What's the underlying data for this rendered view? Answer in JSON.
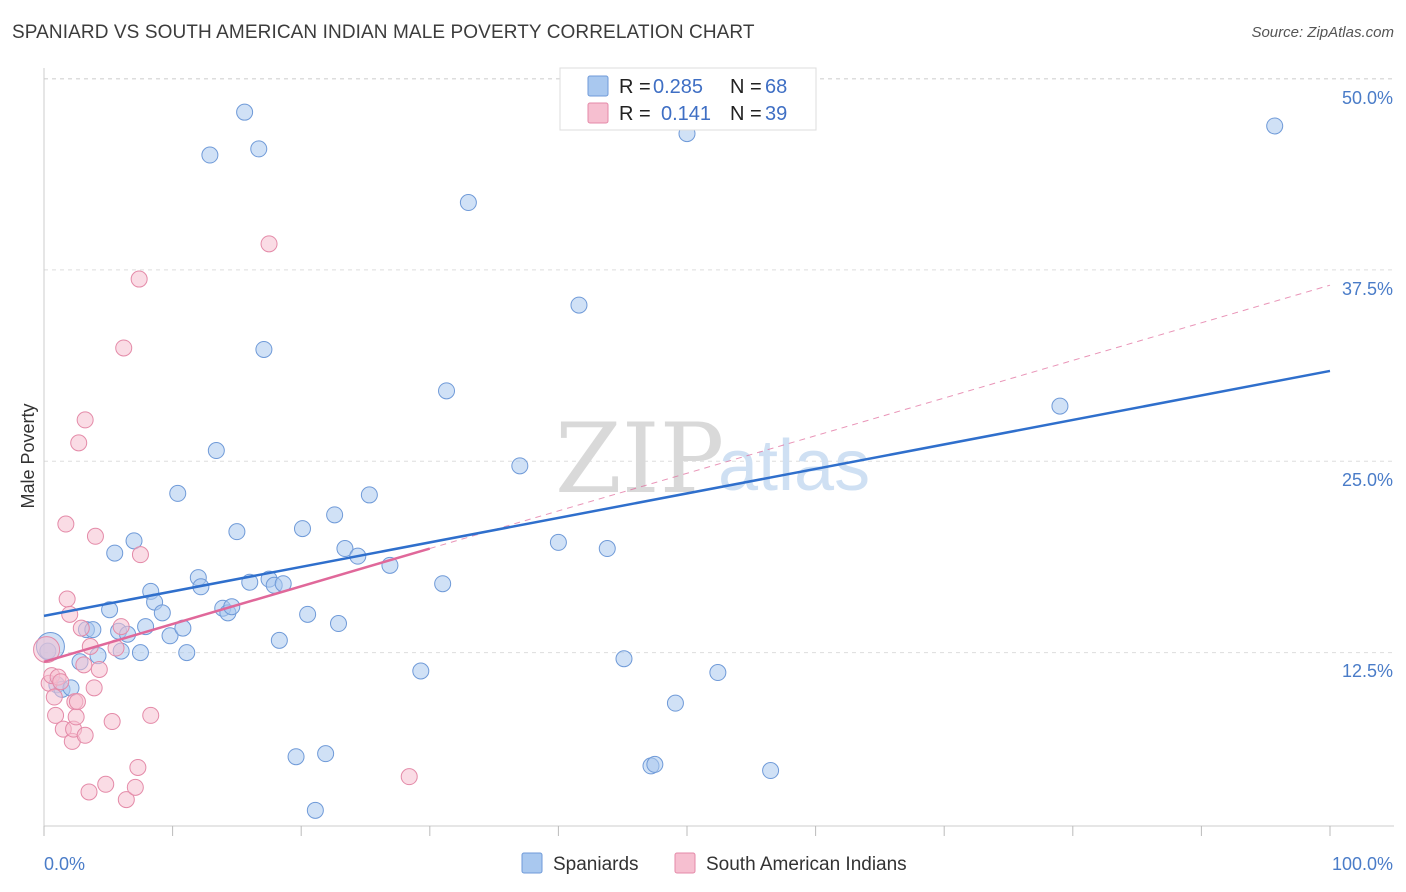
{
  "title": "SPANIARD VS SOUTH AMERICAN INDIAN MALE POVERTY CORRELATION CHART",
  "source": "Source: ZipAtlas.com",
  "watermark": {
    "zip": "ZIP",
    "atlas": "atlas"
  },
  "colors": {
    "blue_fill": "#a9c8ef",
    "blue_stroke": "#6f9ad8",
    "blue_line": "#2f6fcc",
    "pink_fill": "#f6bfd0",
    "pink_stroke": "#e48aa8",
    "pink_line": "#e0689a",
    "tick_text": "#4a7cc8",
    "grid": "#dddddd"
  },
  "legend": {
    "items": [
      {
        "r_label": "R =",
        "r_value": "0.285",
        "n_label": "N =",
        "n_value": "68"
      },
      {
        "r_label": "R =",
        "r_value": "0.141",
        "n_label": "N =",
        "n_value": "39"
      }
    ]
  },
  "bottom_legend": [
    "Spaniards",
    "South American Indians"
  ],
  "chart_data": {
    "type": "scatter",
    "title": "SPANIARD VS SOUTH AMERICAN INDIAN MALE POVERTY CORRELATION CHART",
    "xlabel": "",
    "ylabel": "Male Poverty",
    "xlim": [
      0,
      100
    ],
    "ylim": [
      0,
      53
    ],
    "x_tick_labels": [
      "0.0%",
      "100.0%"
    ],
    "y_ticks": [
      12.5,
      25.0,
      37.5,
      50.0
    ],
    "y_tick_labels": [
      "12.5%",
      "25.0%",
      "37.5%",
      "50.0%"
    ],
    "grid": true,
    "series": [
      {
        "name": "Spaniards",
        "color": "#a9c8ef",
        "points": [
          [
            0.3,
            12.6
          ],
          [
            1.0,
            10.4
          ],
          [
            1.4,
            10.1
          ],
          [
            2.1,
            10.2
          ],
          [
            2.8,
            11.9
          ],
          [
            3.3,
            14.0
          ],
          [
            3.8,
            14.0
          ],
          [
            4.2,
            12.3
          ],
          [
            5.1,
            15.3
          ],
          [
            5.8,
            13.9
          ],
          [
            5.5,
            19.0
          ],
          [
            6.0,
            12.6
          ],
          [
            6.5,
            13.7
          ],
          [
            7.0,
            19.8
          ],
          [
            7.5,
            12.5
          ],
          [
            7.9,
            14.2
          ],
          [
            8.3,
            16.5
          ],
          [
            8.6,
            15.8
          ],
          [
            9.2,
            15.1
          ],
          [
            9.8,
            13.6
          ],
          [
            10.4,
            22.9
          ],
          [
            10.8,
            14.1
          ],
          [
            11.1,
            12.5
          ],
          [
            12.0,
            17.4
          ],
          [
            12.2,
            16.8
          ],
          [
            12.9,
            45.0
          ],
          [
            13.4,
            25.7
          ],
          [
            13.9,
            15.4
          ],
          [
            14.3,
            15.1
          ],
          [
            14.6,
            15.5
          ],
          [
            15.0,
            20.4
          ],
          [
            15.6,
            47.8
          ],
          [
            16.0,
            17.1
          ],
          [
            16.7,
            45.4
          ],
          [
            17.1,
            32.3
          ],
          [
            17.5,
            17.3
          ],
          [
            17.9,
            16.9
          ],
          [
            18.6,
            17.0
          ],
          [
            18.3,
            13.3
          ],
          [
            19.6,
            5.7
          ],
          [
            20.1,
            20.6
          ],
          [
            20.5,
            15.0
          ],
          [
            21.1,
            2.2
          ],
          [
            21.9,
            5.9
          ],
          [
            22.6,
            21.5
          ],
          [
            22.9,
            14.4
          ],
          [
            23.4,
            19.3
          ],
          [
            24.4,
            18.8
          ],
          [
            25.3,
            22.8
          ],
          [
            26.9,
            18.2
          ],
          [
            29.3,
            11.3
          ],
          [
            31.0,
            17.0
          ],
          [
            31.3,
            29.6
          ],
          [
            33.0,
            41.9
          ],
          [
            37.0,
            24.7
          ],
          [
            40.0,
            19.7
          ],
          [
            41.6,
            35.2
          ],
          [
            43.8,
            19.3
          ],
          [
            45.1,
            12.1
          ],
          [
            47.2,
            5.1
          ],
          [
            47.5,
            5.2
          ],
          [
            49.1,
            9.2
          ],
          [
            50.0,
            46.4
          ],
          [
            52.4,
            11.2
          ],
          [
            56.5,
            4.8
          ],
          [
            79.0,
            28.6
          ],
          [
            95.7,
            46.9
          ],
          [
            0.5,
            12.9
          ]
        ],
        "trendline": [
          [
            0,
            14.9
          ],
          [
            100,
            30.9
          ]
        ]
      },
      {
        "name": "South American Indians",
        "color": "#f6bfd0",
        "points": [
          [
            0.2,
            12.7
          ],
          [
            0.4,
            10.5
          ],
          [
            0.6,
            11.0
          ],
          [
            0.8,
            9.6
          ],
          [
            0.9,
            8.4
          ],
          [
            1.1,
            10.9
          ],
          [
            1.3,
            10.6
          ],
          [
            1.5,
            7.5
          ],
          [
            1.7,
            20.9
          ],
          [
            1.8,
            16.0
          ],
          [
            2.0,
            15.0
          ],
          [
            2.2,
            6.7
          ],
          [
            2.3,
            7.5
          ],
          [
            2.4,
            9.3
          ],
          [
            2.5,
            8.3
          ],
          [
            2.6,
            9.3
          ],
          [
            2.7,
            26.2
          ],
          [
            2.9,
            14.1
          ],
          [
            3.1,
            11.7
          ],
          [
            3.2,
            7.1
          ],
          [
            3.2,
            27.7
          ],
          [
            3.5,
            3.4
          ],
          [
            3.6,
            12.9
          ],
          [
            3.9,
            10.2
          ],
          [
            4.0,
            20.1
          ],
          [
            4.3,
            11.4
          ],
          [
            4.8,
            3.9
          ],
          [
            5.3,
            8.0
          ],
          [
            5.6,
            12.8
          ],
          [
            6.0,
            14.2
          ],
          [
            6.2,
            32.4
          ],
          [
            6.4,
            2.9
          ],
          [
            7.1,
            3.7
          ],
          [
            7.3,
            5.0
          ],
          [
            7.5,
            18.9
          ],
          [
            7.4,
            36.9
          ],
          [
            8.3,
            8.4
          ],
          [
            17.5,
            39.2
          ],
          [
            28.4,
            4.4
          ]
        ],
        "trendline_solid": [
          [
            0,
            11.9
          ],
          [
            30,
            19.3
          ]
        ],
        "trendline_dashed": [
          [
            30,
            19.3
          ],
          [
            100,
            36.5
          ]
        ]
      }
    ]
  }
}
